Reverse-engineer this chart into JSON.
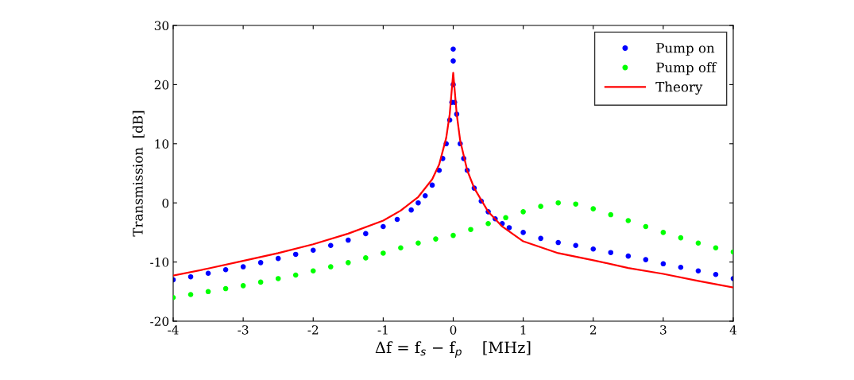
{
  "chart_data": {
    "type": "scatter",
    "xlabel": "Δf = f$_{s}$ − f$_{p}$    [MHz]",
    "ylabel": "Transmission  [dB]",
    "xlim": [
      -4,
      4
    ],
    "ylim": [
      -20,
      30
    ],
    "xticks": [
      -4,
      -3,
      -2,
      -1,
      0,
      1,
      2,
      3,
      4
    ],
    "yticks": [
      -20,
      -10,
      0,
      10,
      20,
      30
    ],
    "grid": false,
    "legend": "top right",
    "series": [
      {
        "name": "Pump on",
        "color": "#0000ff",
        "marker": "circle",
        "x": [
          -4,
          -3.75,
          -3.5,
          -3.25,
          -3,
          -2.75,
          -2.5,
          -2.25,
          -2,
          -1.75,
          -1.5,
          -1.25,
          -1,
          -0.8,
          -0.6,
          -0.5,
          -0.4,
          -0.3,
          -0.2,
          -0.15,
          -0.1,
          -0.05,
          -0.02,
          0,
          0,
          0,
          0.02,
          0.05,
          0.1,
          0.15,
          0.2,
          0.3,
          0.4,
          0.5,
          0.6,
          0.7,
          0.8,
          1,
          1.25,
          1.5,
          1.75,
          2,
          2.25,
          2.5,
          2.75,
          3,
          3.25,
          3.5,
          3.75,
          4
        ],
        "values": [
          -13,
          -12.5,
          -11.9,
          -11.3,
          -10.8,
          -10.1,
          -9.4,
          -8.7,
          -8,
          -7.2,
          -6.3,
          -5.2,
          -4,
          -2.8,
          -1.2,
          0,
          1.2,
          3,
          5.5,
          7.5,
          10,
          14,
          17,
          20,
          24,
          26,
          17,
          15,
          10,
          7.5,
          5.5,
          2.5,
          0.3,
          -1.5,
          -2.7,
          -3.5,
          -4.2,
          -5,
          -6,
          -6.7,
          -7.2,
          -7.8,
          -8.4,
          -9,
          -9.6,
          -10.3,
          -10.9,
          -11.5,
          -12.1,
          -12.8
        ]
      },
      {
        "name": "Pump off",
        "color": "#00ff00",
        "marker": "circle",
        "x": [
          -4,
          -3.75,
          -3.5,
          -3.25,
          -3,
          -2.75,
          -2.5,
          -2.25,
          -2,
          -1.75,
          -1.5,
          -1.25,
          -1,
          -0.75,
          -0.5,
          -0.25,
          0,
          0.25,
          0.5,
          0.75,
          1,
          1.25,
          1.5,
          1.75,
          2,
          2.25,
          2.5,
          2.75,
          3,
          3.25,
          3.5,
          3.75,
          4
        ],
        "values": [
          -16,
          -15.5,
          -15,
          -14.5,
          -14,
          -13.4,
          -12.8,
          -12.2,
          -11.5,
          -10.8,
          -10.1,
          -9.3,
          -8.5,
          -7.6,
          -6.8,
          -6.1,
          -5.5,
          -4.5,
          -3.5,
          -2.5,
          -1.5,
          -0.6,
          0,
          -0.2,
          -1,
          -2,
          -3,
          -4,
          -5,
          -5.9,
          -6.8,
          -7.6,
          -8.3
        ]
      },
      {
        "name": "Theory",
        "type": "line",
        "color": "#ff0000",
        "x": [
          -4,
          -3.5,
          -3,
          -2.5,
          -2,
          -1.5,
          -1,
          -0.75,
          -0.5,
          -0.3,
          -0.2,
          -0.1,
          -0.05,
          0,
          0.05,
          0.1,
          0.2,
          0.3,
          0.5,
          0.7,
          1,
          1.5,
          2,
          2.5,
          3,
          3.5,
          4
        ],
        "values": [
          -12.3,
          -11.1,
          -9.8,
          -8.5,
          -7,
          -5.2,
          -3,
          -1.3,
          1,
          4,
          6.5,
          11,
          15,
          22,
          15,
          10.5,
          5.5,
          2.5,
          -1.5,
          -4,
          -6.5,
          -8.5,
          -9.7,
          -11,
          -12,
          -13.2,
          -14.3
        ]
      }
    ]
  }
}
